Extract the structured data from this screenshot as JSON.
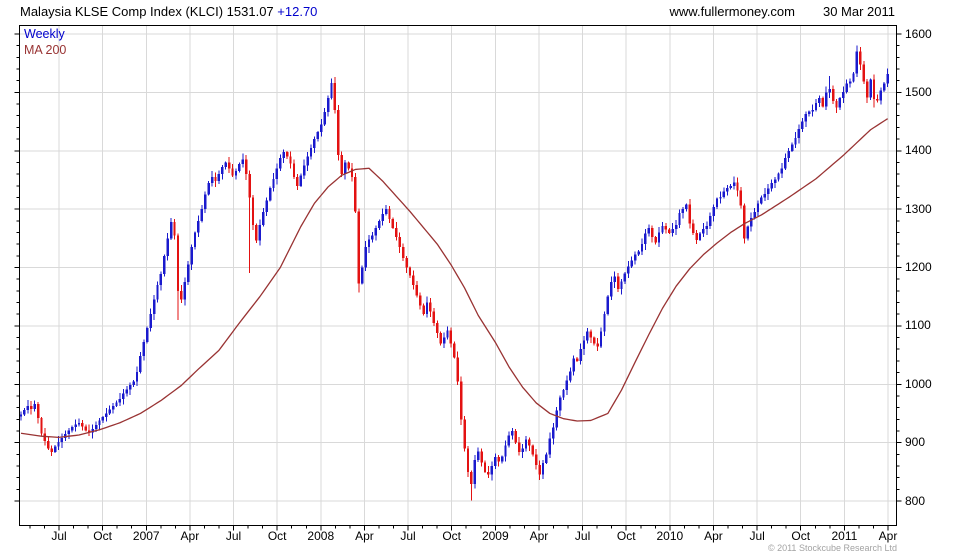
{
  "header": {
    "title_name": "Malaysia KLSE Comp Index (KLCI)",
    "last_value": "1531.07",
    "change": "+12.70",
    "website": "www.fullermoney.com",
    "date": "30 Mar 2011"
  },
  "legend": {
    "series1": "Weekly",
    "series2": "MA 200"
  },
  "footer": {
    "copyright": "© 2011 Stockcube Research Ltd"
  },
  "colors": {
    "up": "#1a1acd",
    "down": "#e31212",
    "ma": "#993333",
    "grid": "#d9d9d9",
    "axis": "#000000",
    "accent_text": "#0000cc",
    "muted_text": "#a3a3a3"
  },
  "axes": {
    "x_labels": [
      "Jul",
      "Oct",
      "2007",
      "Apr",
      "Jul",
      "Oct",
      "2008",
      "Apr",
      "Jul",
      "Oct",
      "2009",
      "Apr",
      "Jul",
      "Oct",
      "2010",
      "Apr",
      "Jul",
      "Oct",
      "2011",
      "Apr"
    ],
    "y_labels": [
      "1600",
      "1500",
      "1400",
      "1300",
      "1200",
      "1100",
      "1000",
      "900",
      "800"
    ],
    "y_min": 800,
    "y_max": 1600,
    "y_major_step": 100,
    "y_minor_step": 20,
    "grid": "on",
    "legend_position": "top-left"
  },
  "chart_data": {
    "type": "candlestick-weekly-with-ma",
    "title": "Malaysia KLSE Comp Index (KLCI)",
    "period_start": "Apr 2006",
    "period_end": "Apr 2011",
    "last_close": 1531.07,
    "last_change": 12.7,
    "open_first": 945,
    "closes": [
      948,
      956,
      963,
      958,
      966,
      942,
      916,
      903,
      890,
      884,
      893,
      901,
      908,
      915,
      921,
      927,
      931,
      934,
      928,
      921,
      917,
      923,
      930,
      938,
      944,
      950,
      957,
      963,
      969,
      975,
      984,
      991,
      999,
      1005,
      1021,
      1048,
      1072,
      1096,
      1120,
      1145,
      1170,
      1189,
      1220,
      1250,
      1278,
      1255,
      1160,
      1145,
      1175,
      1205,
      1235,
      1260,
      1280,
      1300,
      1325,
      1345,
      1355,
      1348,
      1360,
      1372,
      1380,
      1370,
      1358,
      1365,
      1377,
      1385,
      1360,
      1320,
      1273,
      1246,
      1273,
      1295,
      1315,
      1336,
      1352,
      1370,
      1388,
      1398,
      1390,
      1378,
      1355,
      1340,
      1358,
      1375,
      1390,
      1405,
      1420,
      1432,
      1445,
      1466,
      1490,
      1516,
      1470,
      1393,
      1360,
      1380,
      1370,
      1355,
      1296,
      1173,
      1200,
      1235,
      1248,
      1255,
      1268,
      1280,
      1292,
      1300,
      1283,
      1268,
      1252,
      1235,
      1216,
      1200,
      1186,
      1170,
      1152,
      1135,
      1120,
      1140,
      1125,
      1105,
      1088,
      1070,
      1080,
      1092,
      1070,
      1046,
      1005,
      940,
      890,
      850,
      829,
      870,
      885,
      866,
      850,
      845,
      860,
      875,
      868,
      876,
      895,
      912,
      920,
      900,
      884,
      890,
      905,
      895,
      880,
      862,
      845,
      865,
      880,
      907,
      926,
      955,
      977,
      990,
      1006,
      1022,
      1044,
      1040,
      1060,
      1075,
      1090,
      1080,
      1070,
      1065,
      1090,
      1120,
      1150,
      1175,
      1185,
      1163,
      1176,
      1190,
      1202,
      1212,
      1222,
      1227,
      1240,
      1258,
      1268,
      1252,
      1243,
      1260,
      1271,
      1265,
      1259,
      1266,
      1273,
      1293,
      1300,
      1308,
      1275,
      1259,
      1247,
      1258,
      1266,
      1271,
      1288,
      1304,
      1318,
      1321,
      1330,
      1336,
      1340,
      1346,
      1332,
      1306,
      1250,
      1270,
      1285,
      1295,
      1310,
      1320,
      1326,
      1335,
      1345,
      1351,
      1361,
      1370,
      1388,
      1400,
      1411,
      1422,
      1437,
      1450,
      1463,
      1467,
      1470,
      1482,
      1490,
      1476,
      1500,
      1506,
      1485,
      1474,
      1490,
      1501,
      1515,
      1519,
      1532,
      1570,
      1548,
      1519,
      1491,
      1522,
      1489,
      1486,
      1503,
      1515,
      1531.07
    ],
    "extremes": {
      "9": {
        "low": 879
      },
      "44": {
        "high": 1285
      },
      "46": {
        "low": 1110
      },
      "67": {
        "low": 1191
      },
      "91": {
        "high": 1524
      },
      "99": {
        "low": 1157
      },
      "132": {
        "low": 801
      },
      "152": {
        "low": 836
      },
      "212": {
        "low": 1243
      },
      "237": {
        "high": 1528
      },
      "245": {
        "high": 1576
      },
      "250": {
        "low": 1474
      }
    },
    "ma200": {
      "weeks": [
        0,
        6,
        11,
        17,
        23,
        29,
        35,
        41,
        47,
        52,
        58,
        64,
        70,
        76,
        82,
        86,
        90,
        94,
        98,
        102,
        106,
        110,
        114,
        118,
        122,
        126,
        130,
        134,
        139,
        143,
        147,
        151,
        155,
        159,
        163,
        167,
        172,
        176,
        180,
        184,
        188,
        192,
        196,
        200,
        204,
        208,
        212,
        217,
        221,
        225,
        229,
        233,
        237,
        241,
        245,
        249,
        254
      ],
      "values": [
        916,
        911,
        909,
        913,
        922,
        934,
        950,
        972,
        998,
        1026,
        1058,
        1105,
        1150,
        1200,
        1270,
        1310,
        1338,
        1358,
        1368,
        1370,
        1348,
        1322,
        1296,
        1268,
        1240,
        1205,
        1165,
        1118,
        1072,
        1030,
        995,
        968,
        950,
        941,
        937,
        938,
        950,
        990,
        1038,
        1085,
        1130,
        1168,
        1198,
        1222,
        1242,
        1260,
        1275,
        1290,
        1305,
        1320,
        1336,
        1352,
        1372,
        1392,
        1414,
        1436,
        1455
      ]
    }
  }
}
